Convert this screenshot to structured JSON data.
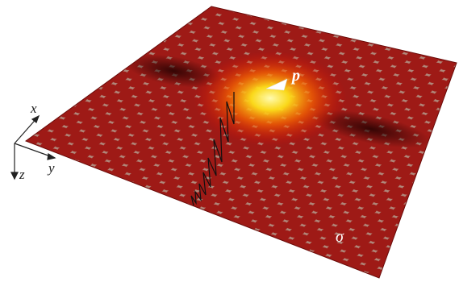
{
  "labels": {
    "x": "x",
    "y": "y",
    "z": "z",
    "p": "p",
    "sigma": "σ"
  }
}
